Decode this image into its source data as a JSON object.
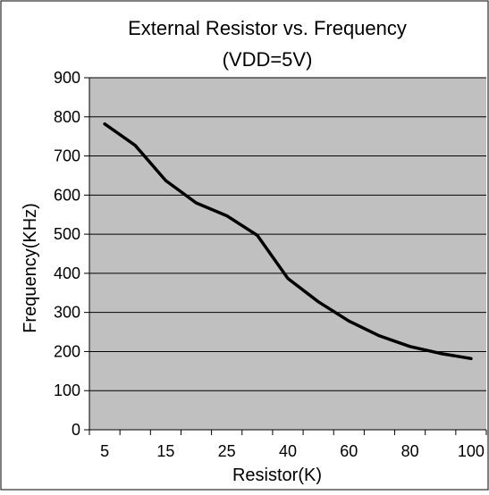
{
  "chart_data": {
    "type": "line",
    "title": "External Resistor vs. Frequency",
    "subtitle": "(VDD=5V)",
    "xlabel": "Resistor(K)",
    "ylabel": "Frequency(KHz)",
    "x_tick_labels": [
      "5",
      "15",
      "25",
      "40",
      "60",
      "80",
      "100"
    ],
    "y_ticks": [
      0,
      100,
      200,
      300,
      400,
      500,
      600,
      700,
      800,
      900
    ],
    "ylim": [
      0,
      900
    ],
    "grid": true,
    "legend": "none",
    "series": [
      {
        "values": [
          782,
          727,
          637,
          580,
          547,
          497,
          387,
          327,
          278,
          240,
          213,
          195,
          182
        ]
      }
    ],
    "colors": {
      "plot_background": "#c0c0c0",
      "line": "#000000",
      "gridline": "#000000",
      "frame": "#000000"
    }
  }
}
